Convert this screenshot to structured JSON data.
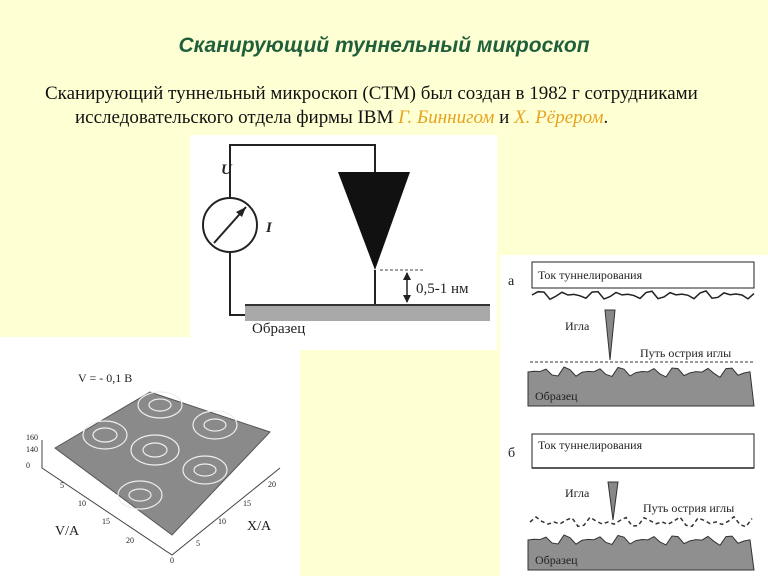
{
  "title": "Сканирующий туннельный микроскоп",
  "intro": {
    "text": "Сканирующий туннельный микроскоп (СТМ) был создан в 1982 г сотрудниками исследовательского отдела фирмы IBM",
    "author1": "Г. Биннигом",
    "conjunction": "и",
    "author2": "Х. Рёрером",
    "end": "."
  },
  "circuit": {
    "voltage_label": "U",
    "current_label": "I",
    "gap_label": "0,5-1 нм",
    "sample_label": "Образец"
  },
  "surface": {
    "voltage_label": "V = - 0,1 В",
    "z_ticks": [
      "160",
      "140",
      "0"
    ],
    "v_ticks": [
      "5",
      "10",
      "15",
      "20"
    ],
    "origin_label": "0",
    "x_ticks": [
      "5",
      "10",
      "15",
      "20"
    ],
    "v_axis_label": "V/A",
    "x_axis_label": "X/A"
  },
  "modes": [
    {
      "letter": "а",
      "current_label": "Ток туннелирования",
      "needle_label": "Игла",
      "path_label": "Путь острия иглы",
      "sample_label": "Образец"
    },
    {
      "letter": "б",
      "current_label": "Ток туннелирования",
      "needle_label": "Игла",
      "path_label": "Путь острия иглы",
      "sample_label": "Образец"
    }
  ]
}
